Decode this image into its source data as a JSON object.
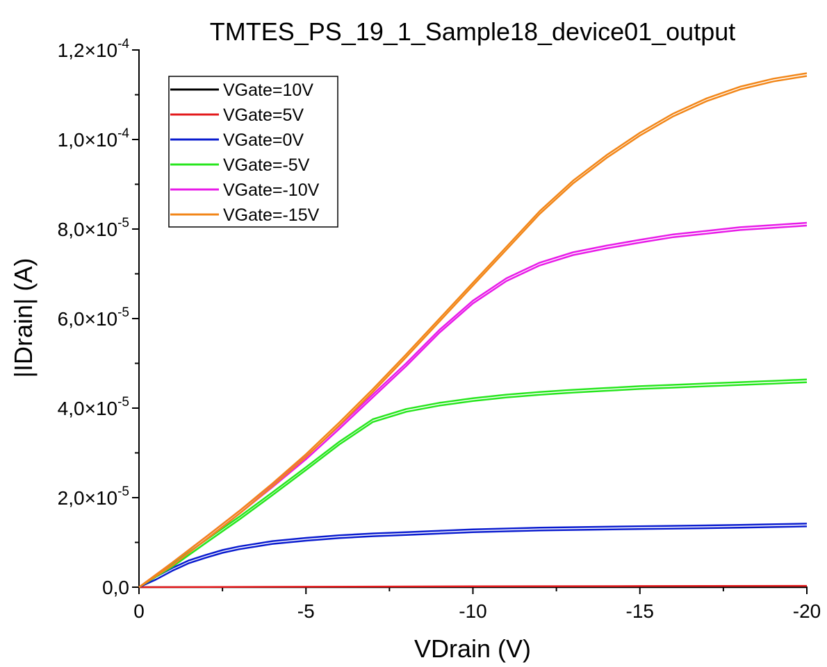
{
  "chart_data": {
    "type": "line",
    "title": "TMTES_PS_19_1_Sample18_device01_output",
    "xlabel": "VDrain (V)",
    "ylabel": "|IDrain| (A)",
    "xlim": [
      0,
      -20
    ],
    "ylim": [
      0,
      0.00012
    ],
    "x_ticks": [
      0,
      -5,
      -10,
      -15,
      -20
    ],
    "x_tick_labels": [
      "0",
      "-5",
      "-10",
      "-15",
      "-20"
    ],
    "y_ticks": [
      0,
      2e-05,
      4e-05,
      6e-05,
      8e-05,
      0.0001,
      0.00012
    ],
    "y_tick_labels": [
      {
        "mantissa": "0,0",
        "exponent": ""
      },
      {
        "mantissa": "2,0×10",
        "exponent": "-5"
      },
      {
        "mantissa": "4,0×10",
        "exponent": "-5"
      },
      {
        "mantissa": "6,0×10",
        "exponent": "-5"
      },
      {
        "mantissa": "8,0×10",
        "exponent": "-5"
      },
      {
        "mantissa": "1,0×10",
        "exponent": "-4"
      },
      {
        "mantissa": "1,2×10",
        "exponent": "-4"
      }
    ],
    "grid": false,
    "legend_position": "top-left",
    "series": [
      {
        "name": "VGate=10V",
        "color": "#000000",
        "x": [
          0,
          -20
        ],
        "y": [
          0,
          0
        ]
      },
      {
        "name": "VGate=5V",
        "color": "#e31a1c",
        "x": [
          0,
          -5,
          -10,
          -15,
          -20
        ],
        "y": [
          0,
          1e-07,
          2e-07,
          2.5e-07,
          3e-07
        ]
      },
      {
        "name": "VGate=0V",
        "color": "#0a1ccf",
        "x": [
          0,
          -0.5,
          -1,
          -1.5,
          -2,
          -2.5,
          -3,
          -4,
          -5,
          -6,
          -7,
          -8,
          -9,
          -10,
          -12,
          -14,
          -16,
          -18,
          -20
        ],
        "y": [
          0,
          2.3e-06,
          4.3e-06,
          6e-06,
          7.2e-06,
          8.3e-06,
          9.1e-06,
          1.03e-05,
          1.1e-05,
          1.16e-05,
          1.2e-05,
          1.23e-05,
          1.26e-05,
          1.29e-05,
          1.33e-05,
          1.35e-05,
          1.37e-05,
          1.39e-05,
          1.42e-05
        ]
      },
      {
        "name": "VGate=-5V",
        "color": "#27e61e",
        "x": [
          0,
          -1,
          -2,
          -3,
          -4,
          -5,
          -6,
          -7,
          -8,
          -9,
          -10,
          -11,
          -12,
          -13,
          -14,
          -15,
          -16,
          -17,
          -18,
          -19,
          -20
        ],
        "y": [
          0,
          5.2e-06,
          1.05e-05,
          1.57e-05,
          2.12e-05,
          2.68e-05,
          3.25e-05,
          3.75e-05,
          3.98e-05,
          4.12e-05,
          4.22e-05,
          4.3e-05,
          4.36e-05,
          4.41e-05,
          4.45e-05,
          4.49e-05,
          4.52e-05,
          4.55e-05,
          4.58e-05,
          4.61e-05,
          4.64e-05
        ]
      },
      {
        "name": "VGate=-10V",
        "color": "#e81be8",
        "x": [
          0,
          -1,
          -2,
          -3,
          -4,
          -5,
          -6,
          -7,
          -8,
          -9,
          -10,
          -11,
          -12,
          -13,
          -14,
          -15,
          -16,
          -17,
          -18,
          -19,
          -20
        ],
        "y": [
          0,
          5.5e-06,
          1.12e-05,
          1.7e-05,
          2.3e-05,
          2.92e-05,
          3.6e-05,
          4.3e-05,
          5e-05,
          5.75e-05,
          6.4e-05,
          6.9e-05,
          7.25e-05,
          7.48e-05,
          7.63e-05,
          7.76e-05,
          7.88e-05,
          7.96e-05,
          8.04e-05,
          8.09e-05,
          8.14e-05
        ]
      },
      {
        "name": "VGate=-15V",
        "color": "#f28618",
        "x": [
          0,
          -1,
          -2,
          -3,
          -4,
          -5,
          -6,
          -7,
          -8,
          -9,
          -10,
          -11,
          -12,
          -13,
          -14,
          -15,
          -16,
          -17,
          -18,
          -19,
          -20
        ],
        "y": [
          0,
          5.5e-06,
          1.12e-05,
          1.7e-05,
          2.32e-05,
          2.97e-05,
          3.68e-05,
          4.42e-05,
          5.2e-05,
          6e-05,
          6.8e-05,
          7.6e-05,
          8.4e-05,
          9.08e-05,
          9.65e-05,
          0.0001015,
          0.0001058,
          0.0001092,
          0.0001118,
          0.0001136,
          0.0001148
        ]
      }
    ]
  }
}
